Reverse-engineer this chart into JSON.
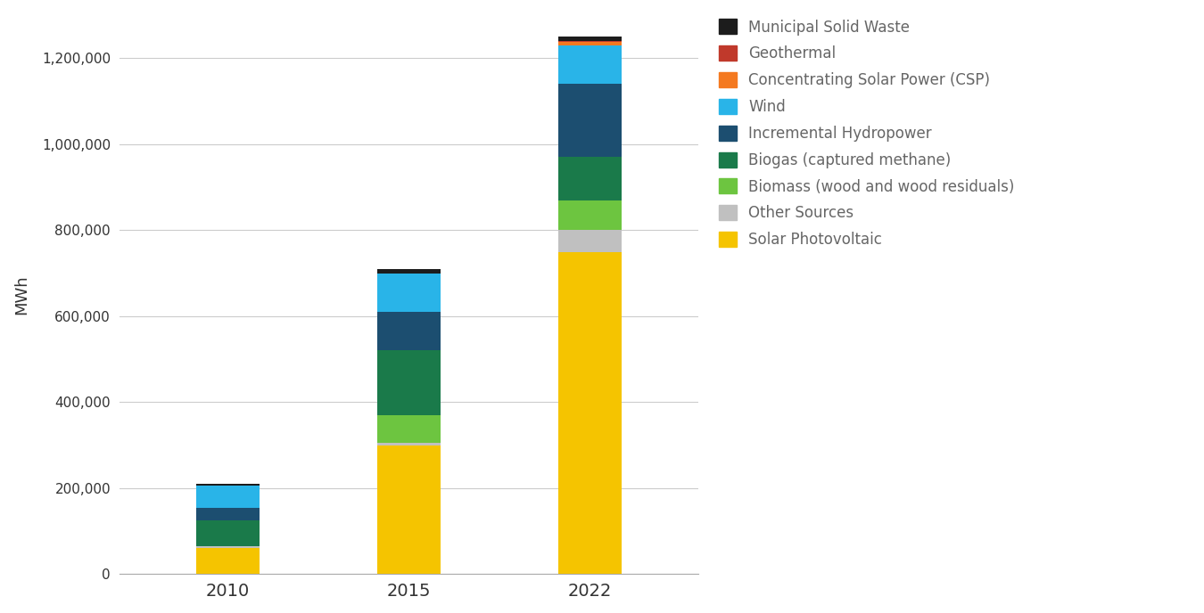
{
  "years": [
    "2010",
    "2015",
    "2022"
  ],
  "categories": [
    "Solar Photovoltaic",
    "Other Sources",
    "Biomass (wood and wood residuals)",
    "Biogas (captured methane)",
    "Incremental Hydropower",
    "Wind",
    "Concentrating Solar Power (CSP)",
    "Geothermal",
    "Municipal Solid Waste"
  ],
  "colors": [
    "#F5C400",
    "#C0C0C0",
    "#6DC540",
    "#1A7A4A",
    "#1C4E70",
    "#29B4E8",
    "#F47920",
    "#C0392B",
    "#1C1C1C"
  ],
  "values": {
    "Solar Photovoltaic": [
      60000,
      300000,
      750000
    ],
    "Other Sources": [
      5000,
      5000,
      50000
    ],
    "Biomass (wood and wood residuals)": [
      0,
      65000,
      70000
    ],
    "Biogas (captured methane)": [
      60000,
      150000,
      100000
    ],
    "Incremental Hydropower": [
      30000,
      90000,
      170000
    ],
    "Wind": [
      50000,
      90000,
      90000
    ],
    "Concentrating Solar Power (CSP)": [
      0,
      0,
      8000
    ],
    "Geothermal": [
      0,
      0,
      3000
    ],
    "Municipal Solid Waste": [
      5000,
      10000,
      9000
    ]
  },
  "ylabel": "MWh",
  "ylim": [
    0,
    1300000
  ],
  "yticks": [
    0,
    200000,
    400000,
    600000,
    800000,
    1000000,
    1200000
  ],
  "ytick_labels": [
    "0",
    "200,000",
    "400,000",
    "600,000",
    "800,000",
    "1,000,000",
    "1,200,000"
  ],
  "background_color": "#ffffff",
  "bar_width": 0.35,
  "legend_order": [
    8,
    7,
    6,
    5,
    4,
    3,
    2,
    1,
    0
  ],
  "legend_text_color": "#666666",
  "axis_text_color": "#333333",
  "grid_color": "#cccccc"
}
